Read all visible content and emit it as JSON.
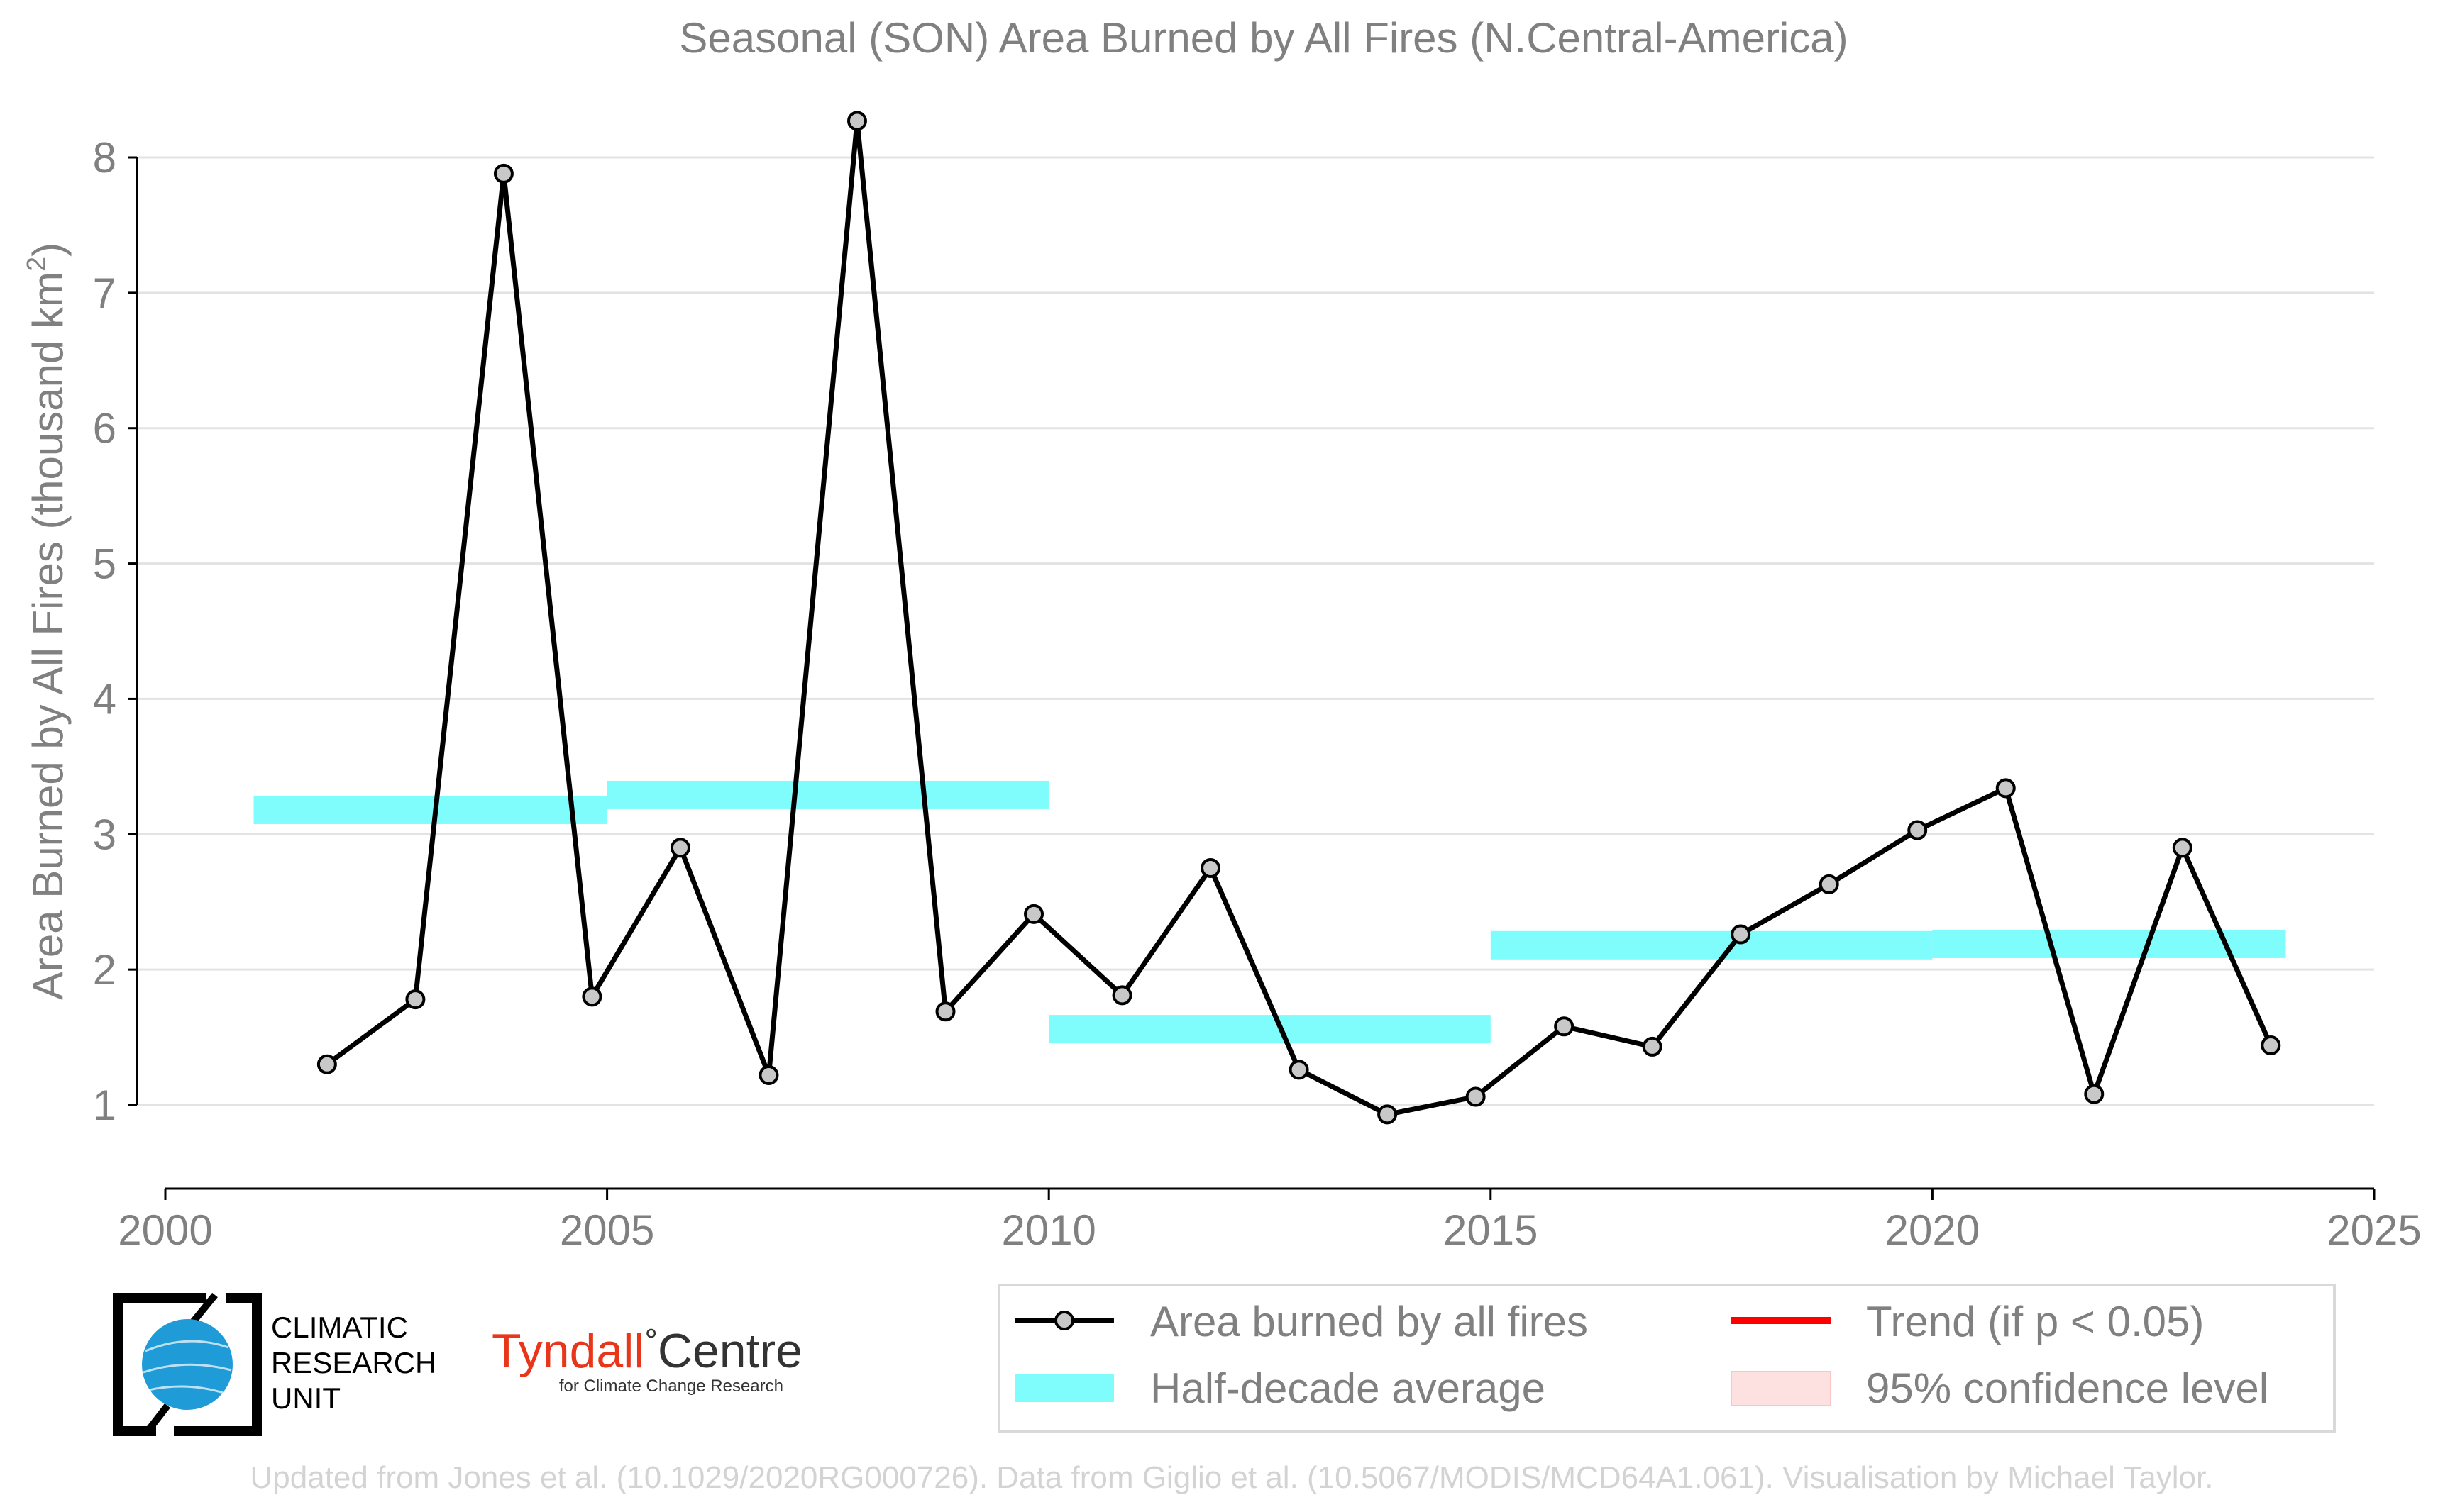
{
  "chart_data": {
    "type": "line",
    "title": "Seasonal (SON) Area Burned by All Fires (N.Central-America)",
    "ylabel": "Area Burned by All Fires (thousand km",
    "ylabel_sup": "2",
    "ylabel_close": ")",
    "xlim": [
      2000,
      2025
    ],
    "ylim": [
      0.4,
      8.6
    ],
    "xticks": [
      2000,
      2005,
      2010,
      2015,
      2020,
      2025
    ],
    "yticks": [
      1,
      2,
      3,
      4,
      5,
      6,
      7,
      8
    ],
    "grid": "horizontal",
    "series": [
      {
        "name": "Area burned by all fires",
        "x": [
          2001.83,
          2002.83,
          2003.83,
          2004.83,
          2005.83,
          2006.83,
          2007.83,
          2008.83,
          2009.83,
          2010.83,
          2011.83,
          2012.83,
          2013.83,
          2014.83,
          2015.83,
          2016.83,
          2017.83,
          2018.83,
          2019.83,
          2020.83,
          2021.83,
          2022.83,
          2023.83
        ],
        "values": [
          1.3,
          1.78,
          7.88,
          1.8,
          2.9,
          1.22,
          8.27,
          1.69,
          2.41,
          1.81,
          2.75,
          1.26,
          0.93,
          1.06,
          1.58,
          1.43,
          2.26,
          2.63,
          3.03,
          3.34,
          1.08,
          2.9,
          1.44
        ]
      }
    ],
    "half_decade_average": {
      "name": "Half-decade average",
      "segments": [
        {
          "x0": 2001.0,
          "x1": 2005.0,
          "value": 3.18
        },
        {
          "x0": 2005.0,
          "x1": 2010.0,
          "value": 3.29
        },
        {
          "x0": 2010.0,
          "x1": 2015.0,
          "value": 1.56
        },
        {
          "x0": 2015.0,
          "x1": 2020.0,
          "value": 2.18
        },
        {
          "x0": 2020.0,
          "x1": 2024.0,
          "value": 2.19
        }
      ]
    },
    "legend": {
      "position": "bottom-right",
      "entries": [
        {
          "label": "Area burned by all fires",
          "kind": "line-marker",
          "color": "#000000"
        },
        {
          "label": "Trend (if p < 0.05)",
          "kind": "line",
          "color": "#ff0000"
        },
        {
          "label": "Half-decade average",
          "kind": "band",
          "color": "#7ffcfc"
        },
        {
          "label": "95% confidence level",
          "kind": "patch",
          "color": "#fde0e0"
        }
      ]
    },
    "colors": {
      "series_line": "#000000",
      "marker_fill": "#c8c8c8",
      "half_decade": "#7ffcfc",
      "trend": "#ff0000",
      "confidence": "#fde0e0",
      "grid": "#e3e3e3",
      "text": "#808080"
    }
  },
  "logos": {
    "cru": [
      "CLIMATIC",
      "RESEARCH",
      "UNIT"
    ],
    "tyndall_main": "Tyndall",
    "tyndall_degree": "°",
    "tyndall_centre": "Centre",
    "tyndall_sub": "for Climate Change Research"
  },
  "footer": "Updated from Jones et al. (10.1029/2020RG000726). Data from Giglio et al. (10.5067/MODIS/MCD64A1.061). Visualisation by Michael Taylor."
}
